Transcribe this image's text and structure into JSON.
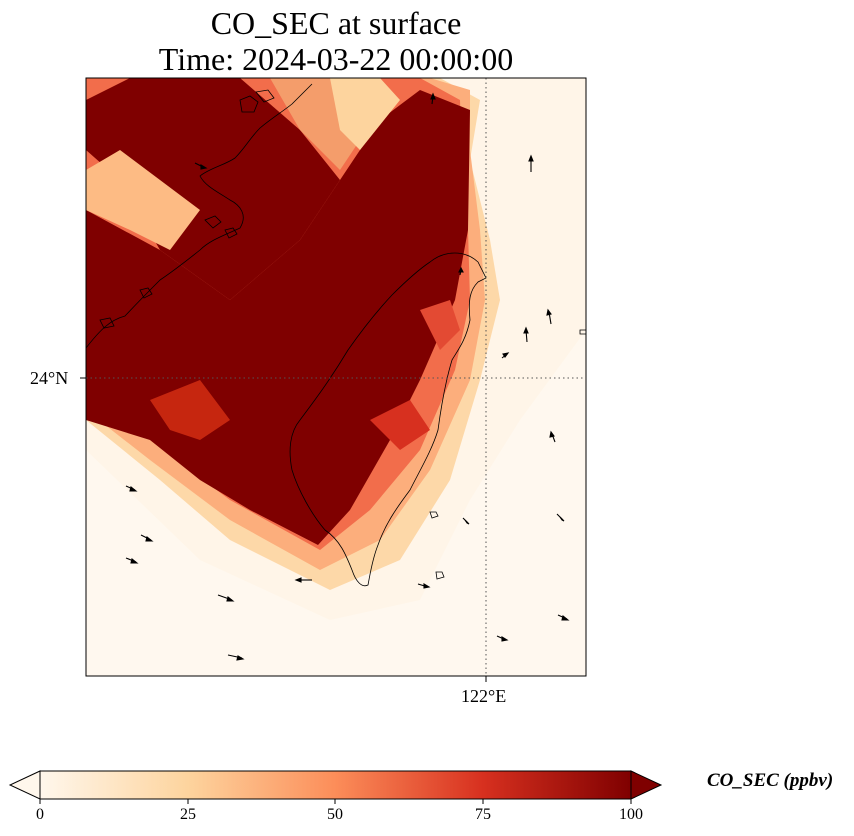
{
  "title": {
    "line1": "CO_SEC at surface",
    "line2": "Time: 2024-03-22 00:00:00"
  },
  "axes": {
    "lat_tick_label": "24°N",
    "lon_tick_label": "122°E",
    "gridlines": "dotted"
  },
  "colorbar": {
    "label": "CO_SEC (ppbv)",
    "ticks": [
      "0",
      "25",
      "50",
      "75",
      "100"
    ],
    "range": [
      0,
      100
    ],
    "extend": "both",
    "colormap": "OrRd",
    "colors": [
      "#fff7ec",
      "#fdd49e",
      "#fc8d59",
      "#d7301f",
      "#7f0000"
    ]
  },
  "map": {
    "features": [
      "Taiwan coastline",
      "China coastline",
      "wind vectors",
      "concentration field"
    ],
    "plume_color": "#7f0000",
    "background_color": "#fff5e8"
  }
}
